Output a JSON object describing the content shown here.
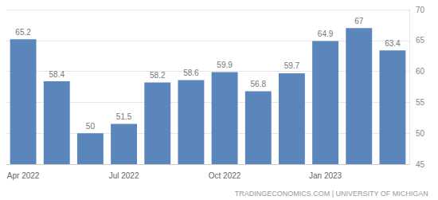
{
  "chart_data": {
    "type": "bar",
    "categories": [
      "Apr 2022",
      null,
      null,
      "Jul 2022",
      null,
      null,
      "Oct 2022",
      null,
      null,
      "Jan 2023",
      null,
      null
    ],
    "values": [
      65.2,
      58.4,
      50,
      51.5,
      58.2,
      58.6,
      59.9,
      56.8,
      59.7,
      64.9,
      67,
      63.4
    ],
    "color": "#5a86bc",
    "ylim": [
      45,
      70
    ],
    "yticks": [
      45,
      50,
      55,
      60,
      65,
      70
    ],
    "grid": true,
    "data_labels": true,
    "annotations": [
      "TRADINGECONOMICS.COM | UNIVERSITY OF MICHIGAN"
    ]
  }
}
